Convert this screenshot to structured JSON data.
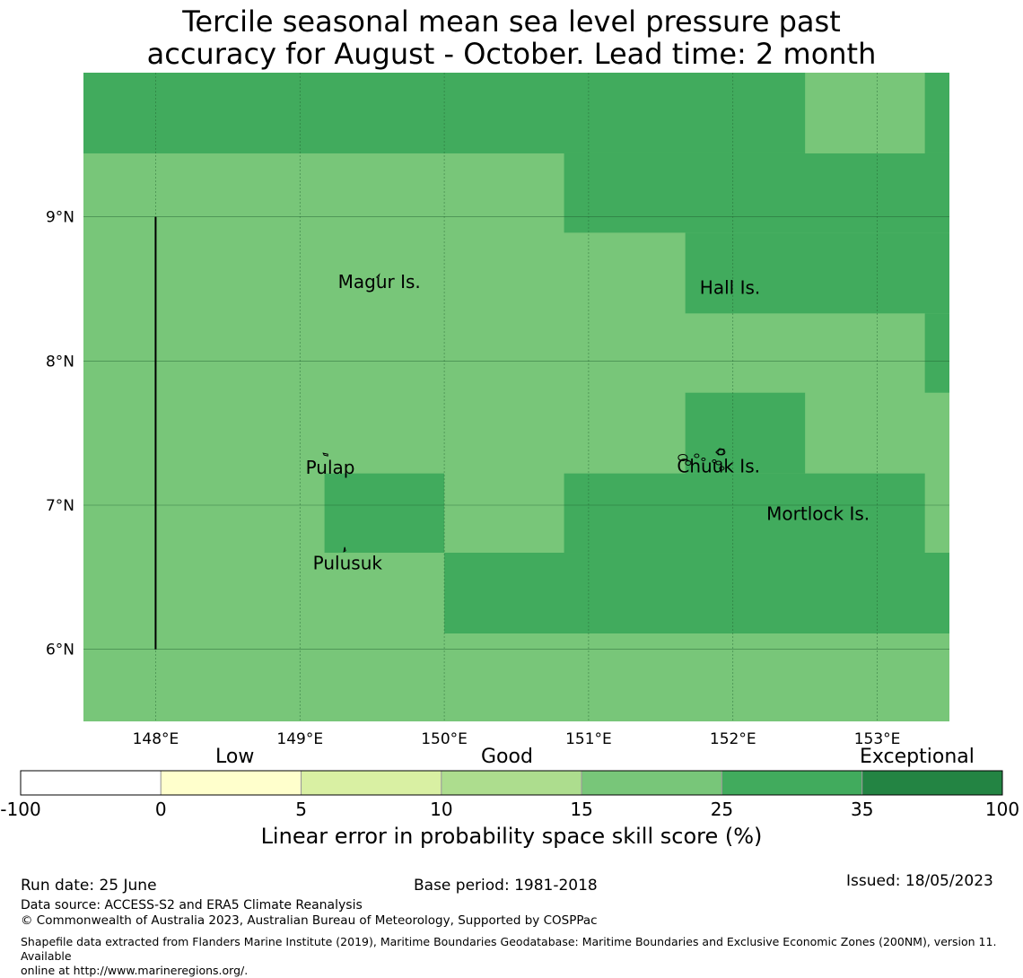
{
  "title": {
    "line1": "Tercile seasonal mean sea level pressure past",
    "line2": "accuracy for August - October. Lead time: 2 month"
  },
  "map": {
    "lon_range": [
      147.5,
      153.5
    ],
    "lat_range": [
      5.5,
      10.0
    ],
    "lon_ticks": [
      148,
      149,
      150,
      151,
      152,
      153
    ],
    "lon_tick_labels": [
      "148°E",
      "149°E",
      "150°E",
      "151°E",
      "152°E",
      "153°E"
    ],
    "lat_ticks": [
      6,
      7,
      8,
      9
    ],
    "lat_tick_labels": [
      "6°N",
      "7°N",
      "8°N",
      "9°N"
    ],
    "cell_colors": {
      "band_15_25": "#78c679",
      "band_25_35": "#41ab5d"
    },
    "skill_cells": [
      {
        "lon": [
          147.5,
          153.5
        ],
        "lat": [
          5.5,
          10.0
        ],
        "band": "band_15_25"
      },
      {
        "lon": [
          147.5,
          152.5
        ],
        "lat": [
          9.44,
          10.0
        ],
        "band": "band_25_35"
      },
      {
        "lon": [
          153.33,
          153.5
        ],
        "lat": [
          9.44,
          10.0
        ],
        "band": "band_25_35"
      },
      {
        "lon": [
          150.83,
          153.5
        ],
        "lat": [
          8.89,
          9.44
        ],
        "band": "band_25_35"
      },
      {
        "lon": [
          151.67,
          153.5
        ],
        "lat": [
          8.33,
          8.89
        ],
        "band": "band_25_35"
      },
      {
        "lon": [
          153.33,
          153.5
        ],
        "lat": [
          7.78,
          8.33
        ],
        "band": "band_25_35"
      },
      {
        "lon": [
          151.67,
          152.5
        ],
        "lat": [
          7.22,
          7.78
        ],
        "band": "band_25_35"
      },
      {
        "lon": [
          150.83,
          153.33
        ],
        "lat": [
          6.67,
          7.22
        ],
        "band": "band_25_35"
      },
      {
        "lon": [
          149.17,
          150.0
        ],
        "lat": [
          6.67,
          7.22
        ],
        "band": "band_25_35"
      },
      {
        "lon": [
          150.0,
          153.5
        ],
        "lat": [
          6.11,
          6.67
        ],
        "band": "band_25_35"
      }
    ],
    "boundary_line": {
      "lon": 148.0,
      "lat": [
        6.0,
        9.0
      ]
    },
    "places": [
      {
        "name": "Magur Is.",
        "lon": 149.55,
        "lat": 8.55
      },
      {
        "name": "Hall Is.",
        "lon": 151.98,
        "lat": 8.51
      },
      {
        "name": "Pulap",
        "lon": 149.21,
        "lat": 7.26
      },
      {
        "name": "Chuuk Is.",
        "lon": 151.9,
        "lat": 7.27
      },
      {
        "name": "Mortlock Is.",
        "lon": 152.59,
        "lat": 6.94
      },
      {
        "name": "Pulusuk",
        "lon": 149.33,
        "lat": 6.6
      }
    ]
  },
  "colorbar": {
    "categories": [
      "Low",
      "Good",
      "Exceptional"
    ],
    "tick_labels": [
      "-100",
      "0",
      "5",
      "10",
      "15",
      "25",
      "35",
      "100"
    ],
    "colors": [
      "#ffffff",
      "#ffffcc",
      "#d9f0a3",
      "#addd8e",
      "#78c679",
      "#41ab5d",
      "#238443"
    ],
    "label": "Linear error in probability space skill score (%)"
  },
  "footer": {
    "run_date": "Run date: 25 June",
    "base_period": "Base period: 1981-2018",
    "issued": "Issued: 18/05/2023",
    "data_source": "Data source: ACCESS-S2 and ERA5 Climate Reanalysis",
    "copyright": "© Commonwealth of Australia 2023, Australian Bureau of Meteorology, Supported by COSPPac",
    "shapefile_line1": "Shapefile data extracted from Flanders Marine Institute (2019), Maritime Boundaries Geodatabase: Maritime Boundaries and Exclusive Economic Zones (200NM), version 11. Available",
    "shapefile_line2": "online at http://www.marineregions.org/."
  }
}
